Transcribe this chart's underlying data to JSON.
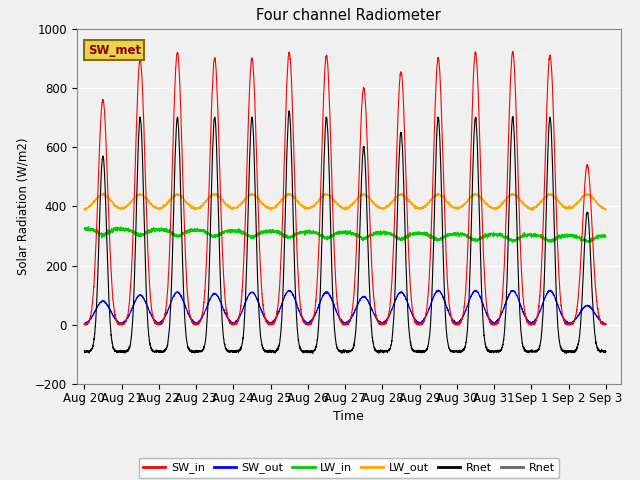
{
  "title": "Four channel Radiometer",
  "xlabel": "Time",
  "ylabel": "Solar Radiation (W/m2)",
  "ylim": [
    -200,
    1000
  ],
  "background_color": "#f0f0f0",
  "plot_bg_color": "#f0f0f0",
  "SW_met_label": "SW_met",
  "SW_met_text_color": "#8b0000",
  "SW_met_face_color": "#e8d44d",
  "SW_met_edge_color": "#8b6914",
  "legend_entries": [
    {
      "label": "SW_in",
      "color": "red"
    },
    {
      "label": "SW_out",
      "color": "blue"
    },
    {
      "label": "LW_in",
      "color": "#00cc00"
    },
    {
      "label": "LW_out",
      "color": "orange"
    },
    {
      "label": "Rnet",
      "color": "black"
    },
    {
      "label": "Rnet",
      "color": "#666666"
    }
  ],
  "tick_labels": [
    "Aug 20",
    "Aug 21",
    "Aug 22",
    "Aug 23",
    "Aug 24",
    "Aug 25",
    "Aug 26",
    "Aug 27",
    "Aug 28",
    "Aug 29",
    "Aug 30",
    "Aug 31",
    "Sep 1",
    "Sep 2",
    "Sep 3"
  ],
  "num_days": 14,
  "pts_per_day": 288,
  "SW_in_peaks": [
    760,
    895,
    920,
    900,
    900,
    920,
    910,
    800,
    855,
    900,
    920,
    920,
    910,
    540
  ],
  "SW_out_peaks": [
    80,
    100,
    110,
    105,
    110,
    115,
    110,
    95,
    110,
    115,
    115,
    115,
    115,
    65
  ],
  "Rnet_peaks": [
    570,
    700,
    700,
    700,
    700,
    720,
    700,
    600,
    650,
    700,
    700,
    700,
    700,
    380
  ],
  "LW_in_base": 315,
  "LW_out_base": 385,
  "grid_color": "white",
  "grid_lw": 0.8,
  "line_lw": 0.8
}
